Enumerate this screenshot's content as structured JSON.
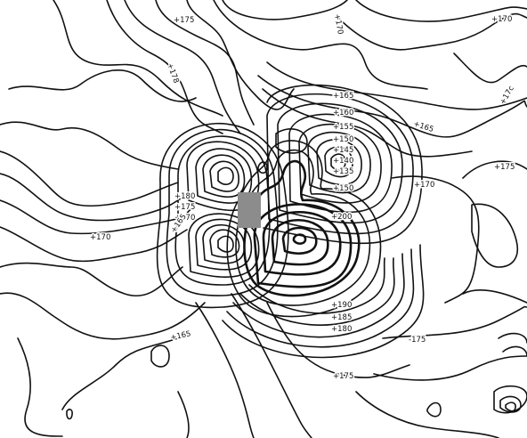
{
  "map": {
    "marker_color": "#8c8c8c",
    "contour_color": "#111111",
    "labels": [
      {
        "id": "tr-170",
        "text": "+170"
      },
      {
        "id": "top-170-rot",
        "text": "+170"
      },
      {
        "id": "top-175",
        "text": "+175"
      },
      {
        "id": "top-178",
        "text": "+178"
      },
      {
        "id": "c165",
        "text": "+165"
      },
      {
        "id": "c160",
        "text": "+160"
      },
      {
        "id": "c155",
        "text": "+155"
      },
      {
        "id": "c150a",
        "text": "+150"
      },
      {
        "id": "c145",
        "text": "+145"
      },
      {
        "id": "c140",
        "text": "+140"
      },
      {
        "id": "c135",
        "text": "+135"
      },
      {
        "id": "c150b",
        "text": "+150"
      },
      {
        "id": "r165",
        "text": "+165"
      },
      {
        "id": "r170",
        "text": "+170"
      },
      {
        "id": "r175",
        "text": "+175"
      },
      {
        "id": "r-17c",
        "text": "+17c"
      },
      {
        "id": "l180",
        "text": "+180"
      },
      {
        "id": "l175",
        "text": "+175"
      },
      {
        "id": "l170",
        "text": "+170"
      },
      {
        "id": "l165",
        "text": "+165"
      },
      {
        "id": "w170",
        "text": "+170"
      },
      {
        "id": "c200",
        "text": "+200"
      },
      {
        "id": "b190",
        "text": "+190"
      },
      {
        "id": "b185",
        "text": "+185"
      },
      {
        "id": "b180",
        "text": "+180"
      },
      {
        "id": "b175",
        "text": "-175"
      },
      {
        "id": "bl165",
        "text": "+165"
      },
      {
        "id": "bot175",
        "text": "+175"
      }
    ]
  }
}
